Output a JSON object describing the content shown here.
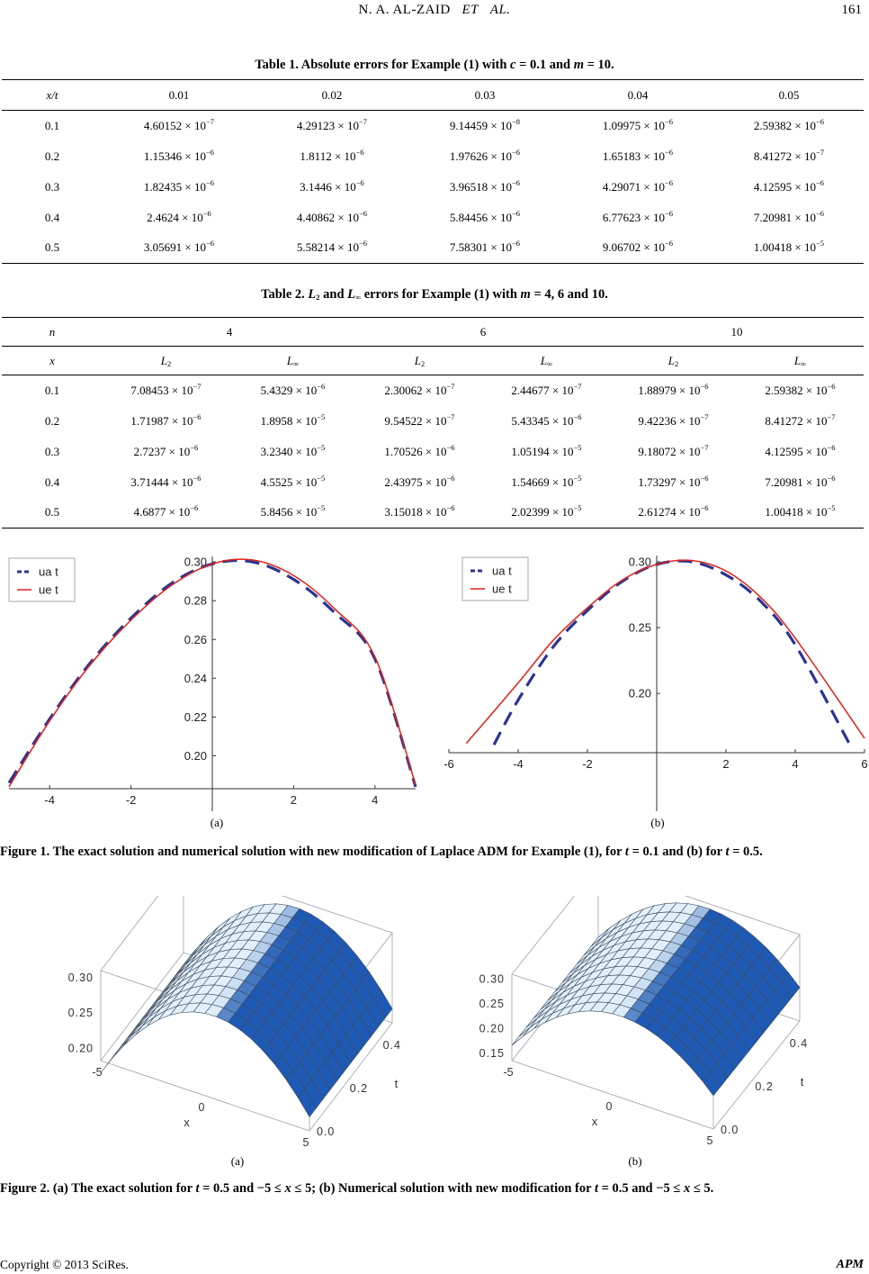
{
  "header": {
    "author": "N. A. AL-ZAID",
    "et": "ET",
    "al": "AL.",
    "page_number": "161"
  },
  "table1": {
    "caption_prefix": "Table 1. Absolute errors for Example (1) with ",
    "caption_c": "c",
    "caption_mid": " = 0.1 and ",
    "caption_m": "m",
    "caption_suffix": " = 10.",
    "corner": "x/t",
    "columns": [
      "0.01",
      "0.02",
      "0.03",
      "0.04",
      "0.05"
    ],
    "rows": [
      {
        "x": "0.1",
        "cells": [
          [
            "4.60152",
            "−7"
          ],
          [
            "4.29123",
            "−7"
          ],
          [
            "9.14459",
            "−8"
          ],
          [
            "1.09975",
            "−6"
          ],
          [
            "2.59382",
            "−6"
          ]
        ]
      },
      {
        "x": "0.2",
        "cells": [
          [
            "1.15346",
            "−6"
          ],
          [
            "1.8112",
            "−6"
          ],
          [
            "1.97626",
            "−6"
          ],
          [
            "1.65183",
            "−6"
          ],
          [
            "8.41272",
            "−7"
          ]
        ]
      },
      {
        "x": "0.3",
        "cells": [
          [
            "1.82435",
            "−6"
          ],
          [
            "3.1446",
            "−6"
          ],
          [
            "3.96518",
            "−6"
          ],
          [
            "4.29071",
            "−6"
          ],
          [
            "4.12595",
            "−6"
          ]
        ]
      },
      {
        "x": "0.4",
        "cells": [
          [
            "2.4624",
            "−6"
          ],
          [
            "4.40862",
            "−6"
          ],
          [
            "5.84456",
            "−6"
          ],
          [
            "6.77623",
            "−6"
          ],
          [
            "7.20981",
            "−6"
          ]
        ]
      },
      {
        "x": "0.5",
        "cells": [
          [
            "3.05691",
            "−6"
          ],
          [
            "5.58214",
            "−6"
          ],
          [
            "7.58301",
            "−6"
          ],
          [
            "9.06702",
            "−6"
          ],
          [
            "1.00418",
            "−5"
          ]
        ]
      }
    ]
  },
  "table2": {
    "caption_prefix": "Table 2. ",
    "caption_L": "L",
    "caption_two": "2",
    "caption_and": " and ",
    "caption_inf": "∞",
    "caption_mid": " errors for Example (1) with ",
    "caption_m": "m",
    "caption_suffix": " = 4, 6 and 10.",
    "n_label": "n",
    "x_label": "x",
    "groups": [
      "4",
      "6",
      "10"
    ],
    "metrics": [
      [
        "L",
        "2"
      ],
      [
        "L",
        "∞"
      ],
      [
        "L",
        "2"
      ],
      [
        "L",
        "∞"
      ],
      [
        "L",
        "2"
      ],
      [
        "L",
        "∞"
      ]
    ],
    "rows": [
      {
        "x": "0.1",
        "cells": [
          [
            "7.08453",
            "−7"
          ],
          [
            "5.4329",
            "−6"
          ],
          [
            "2.30062",
            "−7"
          ],
          [
            "2.44677",
            "−7"
          ],
          [
            "1.88979",
            "−6"
          ],
          [
            "2.59382",
            "−6"
          ]
        ]
      },
      {
        "x": "0.2",
        "cells": [
          [
            "1.71987",
            "−6"
          ],
          [
            "1.8958",
            "−5"
          ],
          [
            "9.54522",
            "−7"
          ],
          [
            "5.43345",
            "−6"
          ],
          [
            "9.42236",
            "−7"
          ],
          [
            "8.41272",
            "−7"
          ]
        ]
      },
      {
        "x": "0.3",
        "cells": [
          [
            "2.7237",
            "−6"
          ],
          [
            "3.2340",
            "−5"
          ],
          [
            "1.70526",
            "−6"
          ],
          [
            "1.05194",
            "−5"
          ],
          [
            "9.18072",
            "−7"
          ],
          [
            "4.12595",
            "−6"
          ]
        ]
      },
      {
        "x": "0.4",
        "cells": [
          [
            "3.71444",
            "−6"
          ],
          [
            "4.5525",
            "−5"
          ],
          [
            "2.43975",
            "−6"
          ],
          [
            "1.54669",
            "−5"
          ],
          [
            "1.73297",
            "−6"
          ],
          [
            "7.20981",
            "−6"
          ]
        ]
      },
      {
        "x": "0.5",
        "cells": [
          [
            "4.6877",
            "−6"
          ],
          [
            "5.8456",
            "−5"
          ],
          [
            "3.15018",
            "−6"
          ],
          [
            "2.02399",
            "−5"
          ],
          [
            "2.61274",
            "−6"
          ],
          [
            "1.00418",
            "−5"
          ]
        ]
      }
    ]
  },
  "chart_data": [
    {
      "type": "line",
      "panel": "(a)",
      "legend": [
        "ua t",
        "ue t"
      ],
      "legend_position": "top-left",
      "xticks": [
        "-4",
        "-2",
        "2",
        "4"
      ],
      "yticks": [
        "0.20",
        "0.22",
        "0.24",
        "0.26",
        "0.28",
        "0.30"
      ],
      "xlim": [
        -5,
        5
      ],
      "ylim": [
        0.183,
        0.301
      ],
      "series": [
        {
          "name": "ua t",
          "style": "dashed",
          "color": "#2a3590",
          "x": [
            -5,
            -4,
            -3,
            -2,
            -1,
            0,
            1,
            2,
            3,
            4,
            5
          ],
          "y": [
            0.186,
            0.219,
            0.248,
            0.271,
            0.289,
            0.299,
            0.3,
            0.291,
            0.274,
            0.25,
            0.184
          ]
        },
        {
          "name": "ue t",
          "style": "solid",
          "color": "#e0201a",
          "x": [
            -5,
            -4,
            -3,
            -2,
            -1,
            0,
            1,
            2,
            3,
            4,
            5
          ],
          "y": [
            0.184,
            0.218,
            0.247,
            0.27,
            0.288,
            0.299,
            0.301,
            0.293,
            0.276,
            0.251,
            0.185
          ]
        }
      ]
    },
    {
      "type": "line",
      "panel": "(b)",
      "legend": [
        "ua t",
        "ue t"
      ],
      "legend_position": "top-left",
      "xticks": [
        "-6",
        "-4",
        "-2",
        "2",
        "4",
        "6"
      ],
      "yticks": [
        "0.20",
        "0.25",
        "0.30"
      ],
      "xlim": [
        -6,
        6
      ],
      "ylim": [
        0.155,
        0.302
      ],
      "series": [
        {
          "name": "ua t",
          "style": "dashed",
          "color": "#2a3590",
          "x": [
            -4.7,
            -4,
            -3,
            -2,
            -1,
            0,
            1,
            2,
            3,
            4,
            5.6
          ],
          "y": [
            0.161,
            0.195,
            0.235,
            0.263,
            0.285,
            0.298,
            0.3,
            0.29,
            0.27,
            0.237,
            0.16
          ]
        },
        {
          "name": "ue t",
          "style": "solid",
          "color": "#e0201a",
          "x": [
            -5.5,
            -4,
            -3,
            -2,
            -1,
            0,
            1,
            2,
            3,
            4,
            6
          ],
          "y": [
            0.162,
            0.208,
            0.24,
            0.265,
            0.286,
            0.298,
            0.301,
            0.293,
            0.273,
            0.242,
            0.166
          ]
        }
      ]
    },
    {
      "type": "surface",
      "panel": "(a)",
      "z_ticks": [
        "0.30",
        "0.25",
        "0.20"
      ],
      "x_ticks": [
        "-5",
        "0",
        "5"
      ],
      "t_ticks": [
        "0.0",
        "0.2",
        "0.4"
      ],
      "x_label": "x",
      "t_label": "t",
      "color": "#3d7fc8"
    },
    {
      "type": "surface",
      "panel": "(b)",
      "z_ticks": [
        "0.30",
        "0.25",
        "0.20",
        "0.15"
      ],
      "x_ticks": [
        "-5",
        "0",
        "5"
      ],
      "t_ticks": [
        "0.0",
        "0.2",
        "0.4"
      ],
      "x_label": "x",
      "t_label": "t",
      "color": "#3d7fc8"
    }
  ],
  "figure1": {
    "label_a": "(a)",
    "label_b": "(b)",
    "caption_p1": "Figure 1. The exact solution and numerical solution with new modification of Laplace ADM for Example (1), for ",
    "t": "t",
    "caption_p2": " = 0.1 and (b) for ",
    "caption_p3": " = 0.5."
  },
  "figure2": {
    "label_a": "(a)",
    "label_b": "(b)",
    "caption_p1": "Figure 2. (a) The exact solution for ",
    "t": "t",
    "x": "x",
    "caption_p2": " = 0.5 and −5 ≤ ",
    "caption_p3": " ≤ 5; (b) Numerical solution with new modification for ",
    "caption_p4": " = 0.5 and −5 ≤ ",
    "caption_p5": " ≤ 5."
  },
  "footer": {
    "copyright": "Copyright © 2013 SciRes.",
    "journal": "APM"
  }
}
